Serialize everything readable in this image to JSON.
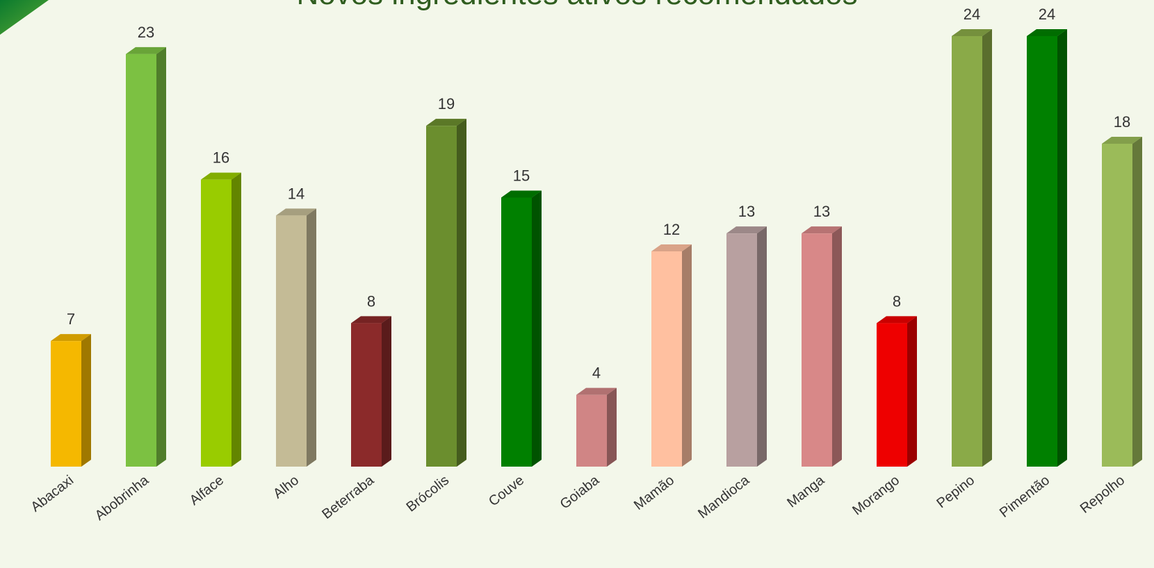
{
  "chart_data": {
    "type": "bar3d",
    "title": "Novos ingredientes ativos recomendados",
    "categories": [
      "Abacaxi",
      "Abobrinha",
      "Alface",
      "Alho",
      "Beterraba",
      "Brócolis",
      "Couve",
      "Goiaba",
      "Mamão",
      "Mandioca",
      "Manga",
      "Morango",
      "Pepino",
      "Pimentão",
      "Repolho"
    ],
    "values": [
      7,
      23,
      16,
      14,
      8,
      19,
      15,
      4,
      12,
      13,
      13,
      8,
      24,
      24,
      18
    ],
    "colors": [
      "#f5b800",
      "#7cc142",
      "#99cc00",
      "#c4bb96",
      "#8b2a2a",
      "#6b8e2e",
      "#008000",
      "#d08585",
      "#ffc0a0",
      "#b8a0a0",
      "#d88888",
      "#ee0000",
      "#8aaa48",
      "#008000",
      "#9bbb59"
    ]
  }
}
